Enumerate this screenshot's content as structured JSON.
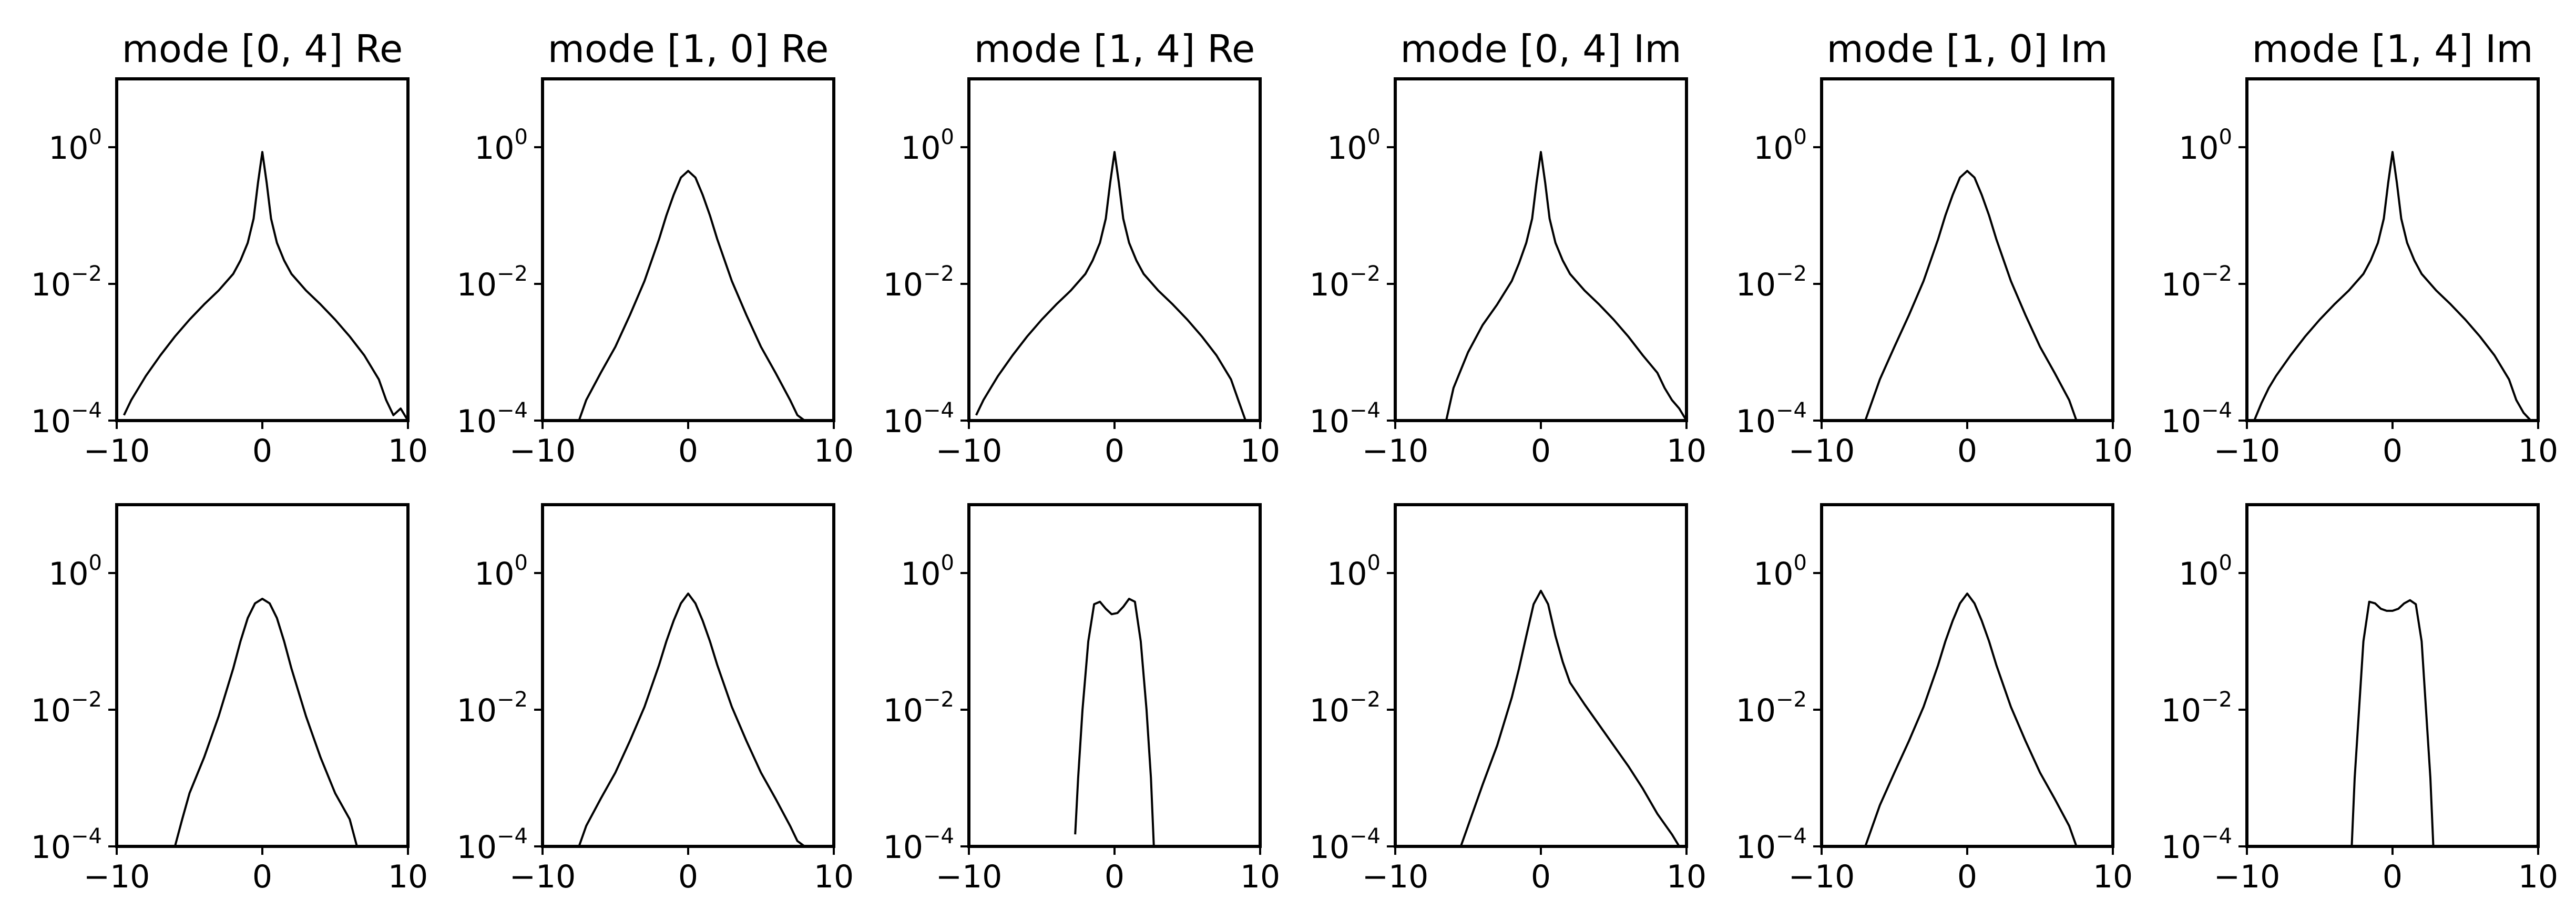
{
  "chart_data": [
    {
      "type": "line",
      "title": "mode [0, 4] Re",
      "xlim": [
        -10,
        10
      ],
      "ylim": [
        0.0001,
        10
      ],
      "yscale": "log",
      "xticks": [
        "−10",
        "0",
        "10"
      ],
      "yticks": [
        {
          "base": "10",
          "exp": "−4"
        },
        {
          "base": "10",
          "exp": "−2"
        },
        {
          "base": "10",
          "exp": "0"
        }
      ],
      "series": [
        {
          "x": [
            -9.5,
            -9,
            -8.5,
            -8,
            -7,
            -6,
            -5,
            -4,
            -3,
            -2,
            -1.5,
            -1,
            -0.6,
            -0.3,
            0,
            0.3,
            0.6,
            1,
            1.5,
            2,
            3,
            4,
            5,
            6,
            7,
            8,
            8.5,
            9,
            9.5,
            10
          ],
          "y": [
            0.00012,
            0.0002,
            0.0003,
            0.00045,
            0.0009,
            0.0017,
            0.003,
            0.005,
            0.008,
            0.014,
            0.022,
            0.04,
            0.09,
            0.3,
            0.85,
            0.3,
            0.09,
            0.04,
            0.022,
            0.014,
            0.008,
            0.005,
            0.003,
            0.0017,
            0.0009,
            0.0004,
            0.0002,
            0.00012,
            0.00015,
            0.0001
          ]
        }
      ]
    },
    {
      "type": "line",
      "title": "mode [1, 0] Re",
      "xlim": [
        -10,
        10
      ],
      "ylim": [
        0.0001,
        10
      ],
      "yscale": "log",
      "xticks": [
        "−10",
        "0",
        "10"
      ],
      "yticks": [
        {
          "base": "10",
          "exp": "−4"
        },
        {
          "base": "10",
          "exp": "−2"
        },
        {
          "base": "10",
          "exp": "0"
        }
      ],
      "series": [
        {
          "x": [
            -7.5,
            -7,
            -6,
            -5,
            -4,
            -3,
            -2,
            -1.5,
            -1,
            -0.5,
            0,
            0.5,
            1,
            1.5,
            2,
            3,
            4,
            5,
            6,
            7,
            7.5,
            8
          ],
          "y": [
            0.0001,
            0.0002,
            0.0005,
            0.0012,
            0.0035,
            0.011,
            0.045,
            0.1,
            0.2,
            0.36,
            0.45,
            0.36,
            0.2,
            0.1,
            0.045,
            0.011,
            0.0035,
            0.0012,
            0.0005,
            0.0002,
            0.00012,
            0.0001
          ]
        }
      ]
    },
    {
      "type": "line",
      "title": "mode [1, 4] Re",
      "xlim": [
        -10,
        10
      ],
      "ylim": [
        0.0001,
        10
      ],
      "yscale": "log",
      "xticks": [
        "−10",
        "0",
        "10"
      ],
      "yticks": [
        {
          "base": "10",
          "exp": "−4"
        },
        {
          "base": "10",
          "exp": "−2"
        },
        {
          "base": "10",
          "exp": "0"
        }
      ],
      "series": [
        {
          "x": [
            -9.5,
            -9,
            -8.5,
            -8,
            -7,
            -6,
            -5,
            -4,
            -3,
            -2,
            -1.5,
            -1,
            -0.6,
            -0.3,
            0,
            0.3,
            0.6,
            1,
            1.5,
            2,
            3,
            4,
            5,
            6,
            7,
            8,
            8.5,
            9
          ],
          "y": [
            0.00012,
            0.0002,
            0.0003,
            0.00045,
            0.0009,
            0.0017,
            0.003,
            0.005,
            0.008,
            0.014,
            0.022,
            0.04,
            0.09,
            0.3,
            0.85,
            0.3,
            0.09,
            0.04,
            0.022,
            0.014,
            0.008,
            0.005,
            0.003,
            0.0017,
            0.0009,
            0.0004,
            0.0002,
            0.0001
          ]
        }
      ]
    },
    {
      "type": "line",
      "title": "mode [0, 4] Im",
      "xlim": [
        -10,
        10
      ],
      "ylim": [
        0.0001,
        10
      ],
      "yscale": "log",
      "xticks": [
        "−10",
        "0",
        "10"
      ],
      "yticks": [
        {
          "base": "10",
          "exp": "−4"
        },
        {
          "base": "10",
          "exp": "−2"
        },
        {
          "base": "10",
          "exp": "0"
        }
      ],
      "series": [
        {
          "x": [
            -6.5,
            -6,
            -5,
            -4,
            -3,
            -2,
            -1.5,
            -1,
            -0.6,
            -0.3,
            0,
            0.3,
            0.6,
            1,
            1.5,
            2,
            3,
            4,
            5,
            6,
            7,
            8,
            8.5,
            9,
            9.5,
            10
          ],
          "y": [
            0.0001,
            0.0003,
            0.001,
            0.0025,
            0.005,
            0.011,
            0.02,
            0.04,
            0.09,
            0.3,
            0.85,
            0.3,
            0.09,
            0.04,
            0.022,
            0.014,
            0.008,
            0.005,
            0.003,
            0.0017,
            0.0009,
            0.0005,
            0.0003,
            0.0002,
            0.00015,
            0.0001
          ]
        }
      ]
    },
    {
      "type": "line",
      "title": "mode [1, 0] Im",
      "xlim": [
        -10,
        10
      ],
      "ylim": [
        0.0001,
        10
      ],
      "yscale": "log",
      "xticks": [
        "−10",
        "0",
        "10"
      ],
      "yticks": [
        {
          "base": "10",
          "exp": "−4"
        },
        {
          "base": "10",
          "exp": "−2"
        },
        {
          "base": "10",
          "exp": "0"
        }
      ],
      "series": [
        {
          "x": [
            -7,
            -6,
            -5,
            -4,
            -3,
            -2,
            -1.5,
            -1,
            -0.5,
            0,
            0.5,
            1,
            1.5,
            2,
            3,
            4,
            5,
            6,
            7,
            7.5
          ],
          "y": [
            0.0001,
            0.0004,
            0.0012,
            0.0035,
            0.011,
            0.045,
            0.1,
            0.2,
            0.36,
            0.45,
            0.36,
            0.2,
            0.1,
            0.045,
            0.011,
            0.0035,
            0.0012,
            0.0005,
            0.0002,
            0.0001
          ]
        }
      ]
    },
    {
      "type": "line",
      "title": "mode [1, 4] Im",
      "xlim": [
        -10,
        10
      ],
      "ylim": [
        0.0001,
        10
      ],
      "yscale": "log",
      "xticks": [
        "−10",
        "0",
        "10"
      ],
      "yticks": [
        {
          "base": "10",
          "exp": "−4"
        },
        {
          "base": "10",
          "exp": "−2"
        },
        {
          "base": "10",
          "exp": "0"
        }
      ],
      "series": [
        {
          "x": [
            -9.5,
            -9,
            -8.5,
            -8,
            -7,
            -6,
            -5,
            -4,
            -3,
            -2,
            -1.5,
            -1,
            -0.6,
            -0.3,
            0,
            0.3,
            0.6,
            1,
            1.5,
            2,
            3,
            4,
            5,
            6,
            7,
            8,
            8.5,
            9,
            9.5
          ],
          "y": [
            0.0001,
            0.00018,
            0.0003,
            0.00045,
            0.0009,
            0.0017,
            0.003,
            0.005,
            0.008,
            0.014,
            0.022,
            0.04,
            0.09,
            0.3,
            0.85,
            0.3,
            0.09,
            0.04,
            0.022,
            0.014,
            0.008,
            0.005,
            0.003,
            0.0017,
            0.0009,
            0.0004,
            0.0002,
            0.00013,
            0.0001
          ]
        }
      ]
    },
    {
      "type": "line",
      "title": "",
      "xlim": [
        -10,
        10
      ],
      "ylim": [
        0.0001,
        10
      ],
      "yscale": "log",
      "xticks": [
        "−10",
        "0",
        "10"
      ],
      "yticks": [
        {
          "base": "10",
          "exp": "−4"
        },
        {
          "base": "10",
          "exp": "−2"
        },
        {
          "base": "10",
          "exp": "0"
        }
      ],
      "series": [
        {
          "x": [
            -6,
            -5.5,
            -5,
            -4,
            -3,
            -2,
            -1.5,
            -1,
            -0.5,
            0,
            0.5,
            1,
            1.5,
            2,
            3,
            4,
            5,
            6,
            6.5
          ],
          "y": [
            0.0001,
            0.00025,
            0.0006,
            0.002,
            0.008,
            0.04,
            0.1,
            0.22,
            0.36,
            0.42,
            0.36,
            0.22,
            0.1,
            0.04,
            0.008,
            0.002,
            0.0006,
            0.00025,
            0.0001
          ]
        }
      ]
    },
    {
      "type": "line",
      "title": "",
      "xlim": [
        -10,
        10
      ],
      "ylim": [
        0.0001,
        10
      ],
      "yscale": "log",
      "xticks": [
        "−10",
        "0",
        "10"
      ],
      "yticks": [
        {
          "base": "10",
          "exp": "−4"
        },
        {
          "base": "10",
          "exp": "−2"
        },
        {
          "base": "10",
          "exp": "0"
        }
      ],
      "series": [
        {
          "x": [
            -7.5,
            -7,
            -6,
            -5,
            -4,
            -3,
            -2,
            -1.5,
            -1,
            -0.5,
            0,
            0.5,
            1,
            1.5,
            2,
            3,
            4,
            5,
            6,
            7,
            7.5,
            8
          ],
          "y": [
            0.0001,
            0.0002,
            0.0005,
            0.0012,
            0.0035,
            0.011,
            0.045,
            0.1,
            0.2,
            0.36,
            0.5,
            0.36,
            0.2,
            0.1,
            0.045,
            0.011,
            0.0035,
            0.0012,
            0.0005,
            0.0002,
            0.00012,
            0.0001
          ]
        }
      ]
    },
    {
      "type": "line",
      "title": "",
      "xlim": [
        -10,
        10
      ],
      "ylim": [
        0.0001,
        10
      ],
      "yscale": "log",
      "xticks": [
        "−10",
        "0",
        "10"
      ],
      "yticks": [
        {
          "base": "10",
          "exp": "−4"
        },
        {
          "base": "10",
          "exp": "−2"
        },
        {
          "base": "10",
          "exp": "0"
        }
      ],
      "series": [
        {
          "x": [
            -2.7,
            -2.5,
            -2.2,
            -1.8,
            -1.4,
            -1,
            -0.6,
            -0.2,
            0.2,
            0.6,
            1,
            1.4,
            1.8,
            2.2,
            2.5,
            2.7
          ],
          "y": [
            0.00015,
            0.001,
            0.01,
            0.1,
            0.35,
            0.38,
            0.3,
            0.25,
            0.26,
            0.32,
            0.42,
            0.38,
            0.1,
            0.01,
            0.001,
            0.0001
          ]
        }
      ]
    },
    {
      "type": "line",
      "title": "",
      "xlim": [
        -10,
        10
      ],
      "ylim": [
        0.0001,
        10
      ],
      "yscale": "log",
      "xticks": [
        "−10",
        "0",
        "10"
      ],
      "yticks": [
        {
          "base": "10",
          "exp": "−4"
        },
        {
          "base": "10",
          "exp": "−2"
        },
        {
          "base": "10",
          "exp": "0"
        }
      ],
      "series": [
        {
          "x": [
            -5.5,
            -5,
            -4,
            -3,
            -2,
            -1.5,
            -1,
            -0.5,
            0,
            0.5,
            1,
            1.5,
            2,
            3,
            4,
            5,
            6,
            7,
            8,
            9,
            9.5
          ],
          "y": [
            0.0001,
            0.0002,
            0.0008,
            0.003,
            0.015,
            0.04,
            0.12,
            0.35,
            0.55,
            0.35,
            0.12,
            0.05,
            0.025,
            0.012,
            0.006,
            0.003,
            0.0015,
            0.0007,
            0.0003,
            0.00015,
            0.0001
          ]
        }
      ]
    },
    {
      "type": "line",
      "title": "",
      "xlim": [
        -10,
        10
      ],
      "ylim": [
        0.0001,
        10
      ],
      "yscale": "log",
      "xticks": [
        "−10",
        "0",
        "10"
      ],
      "yticks": [
        {
          "base": "10",
          "exp": "−4"
        },
        {
          "base": "10",
          "exp": "−2"
        },
        {
          "base": "10",
          "exp": "0"
        }
      ],
      "series": [
        {
          "x": [
            -7,
            -6,
            -5,
            -4,
            -3,
            -2,
            -1.5,
            -1,
            -0.5,
            0,
            0.5,
            1,
            1.5,
            2,
            3,
            4,
            5,
            6,
            7,
            7.5
          ],
          "y": [
            0.0001,
            0.0004,
            0.0012,
            0.0035,
            0.011,
            0.045,
            0.1,
            0.2,
            0.36,
            0.5,
            0.36,
            0.2,
            0.1,
            0.045,
            0.011,
            0.0035,
            0.0012,
            0.0005,
            0.0002,
            0.0001
          ]
        }
      ]
    },
    {
      "type": "line",
      "title": "",
      "xlim": [
        -10,
        10
      ],
      "ylim": [
        0.0001,
        10
      ],
      "yscale": "log",
      "xticks": [
        "−10",
        "0",
        "10"
      ],
      "yticks": [
        {
          "base": "10",
          "exp": "−4"
        },
        {
          "base": "10",
          "exp": "−2"
        },
        {
          "base": "10",
          "exp": "0"
        }
      ],
      "series": [
        {
          "x": [
            -2.8,
            -2.6,
            -2.3,
            -2,
            -1.6,
            -1.2,
            -0.8,
            -0.4,
            0,
            0.4,
            0.8,
            1.2,
            1.6,
            2,
            2.3,
            2.6,
            2.8
          ],
          "y": [
            0.0001,
            0.001,
            0.01,
            0.1,
            0.38,
            0.36,
            0.3,
            0.28,
            0.28,
            0.3,
            0.36,
            0.4,
            0.35,
            0.1,
            0.01,
            0.001,
            0.0001
          ]
        }
      ]
    }
  ]
}
